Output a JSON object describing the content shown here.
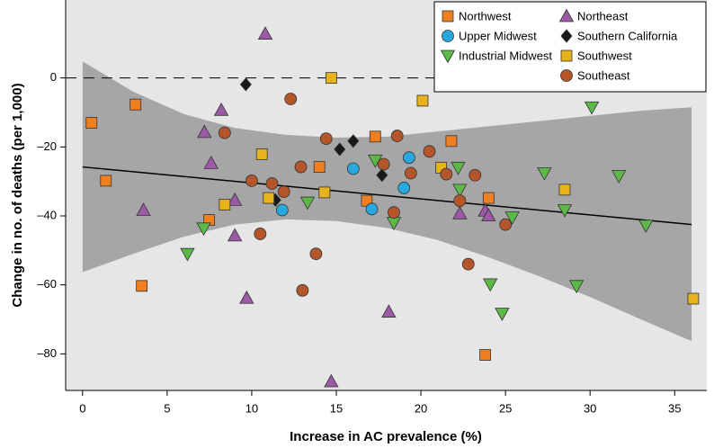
{
  "chart_data": {
    "type": "scatter",
    "x_label": "Increase in AC prevalence (%)",
    "y_label": "Change in no. of deaths (per 1,000)",
    "xlim": [
      -1,
      36.9
    ],
    "ylim": [
      -90.6,
      22.6
    ],
    "xticks": [
      0,
      5,
      10,
      15,
      20,
      25,
      30,
      35
    ],
    "yticks": [
      0,
      {
        "value": -20,
        "label": "–20"
      },
      {
        "value": -40,
        "label": "–40"
      },
      {
        "value": -60,
        "label": "–60"
      },
      {
        "value": -80,
        "label": "–80"
      }
    ],
    "reference_line": 0,
    "trend": {
      "x": [
        0,
        36
      ],
      "y": [
        -25.8,
        -42.5
      ],
      "color": "#000000"
    },
    "band": {
      "color": "#a6a6a6",
      "x": [
        0,
        3,
        6,
        9,
        12,
        15,
        18,
        21,
        24,
        27,
        30,
        33,
        36
      ],
      "upper": [
        4.8,
        -4,
        -10.5,
        -14.5,
        -16.5,
        -17.3,
        -17,
        -15.5,
        -14,
        -12.5,
        -11,
        -9.5,
        -8.5
      ],
      "lower": [
        -56.3,
        -51,
        -46,
        -42.5,
        -41,
        -41.5,
        -43.5,
        -47,
        -52,
        -57.5,
        -63.5,
        -70,
        -76.3
      ]
    },
    "legend_columns": 2,
    "series": [
      {
        "name": "Northwest",
        "color": "#f07f22",
        "marker": "square",
        "x": [
          0.53,
          1.38,
          3.13,
          3.5,
          7.48,
          14.0,
          17.3,
          16.8,
          21.8,
          24.0,
          23.8
        ],
        "values": [
          -13.0,
          -29.8,
          -7.7,
          -60.3,
          -41.2,
          -25.8,
          -17.0,
          -35.6,
          -18.3,
          -34.8,
          -80.3
        ]
      },
      {
        "name": "Upper Midwest",
        "color": "#29a8e0",
        "marker": "circle",
        "x": [
          11.8,
          16.0,
          17.1,
          19.0,
          19.3
        ],
        "values": [
          -38.3,
          -26.3,
          -38.0,
          -31.9,
          -23.1
        ]
      },
      {
        "name": "Industrial Midwest",
        "color": "#5cb947",
        "marker": "triangle-down",
        "x": [
          6.2,
          7.16,
          13.3,
          17.3,
          18.4,
          22.2,
          22.3,
          24.1,
          24.8,
          25.4,
          27.3,
          28.5,
          29.2,
          30.1,
          31.7,
          33.3
        ],
        "values": [
          -51.0,
          -43.6,
          -36.1,
          -23.9,
          -42.0,
          -26.0,
          -32.4,
          -59.8,
          -68.3,
          -40.4,
          -27.6,
          -38.3,
          -60.3,
          -8.5,
          -28.4,
          -42.8
        ]
      },
      {
        "name": "Northeast",
        "color": "#9b59a6",
        "marker": "triangle-up",
        "x": [
          3.6,
          7.2,
          7.6,
          8.2,
          9.0,
          9.0,
          9.7,
          10.8,
          14.7,
          18.1,
          22.3,
          23.8,
          24.0
        ],
        "values": [
          -38.3,
          -15.7,
          -24.7,
          -9.3,
          -35.4,
          -45.7,
          -63.8,
          12.8,
          -88.0,
          -67.8,
          -39.3,
          -38.5,
          -39.9
        ]
      },
      {
        "name": "Southern California",
        "color": "#1a1a1a",
        "marker": "diamond",
        "x": [
          9.65,
          11.4,
          15.2,
          16.0,
          17.7
        ],
        "values": [
          -1.9,
          -35.4,
          -20.7,
          -18.3,
          -28.2
        ]
      },
      {
        "name": "Southwest",
        "color": "#e8b21c",
        "marker": "square",
        "x": [
          14.7,
          20.1,
          10.6,
          8.4,
          11.0,
          14.3,
          21.2,
          28.5,
          36.1
        ],
        "values": [
          0,
          -6.6,
          -22.1,
          -36.7,
          -34.8,
          -33.2,
          -26.0,
          -32.4,
          -64.0
        ]
      },
      {
        "name": "Southeast",
        "color": "#b5562a",
        "marker": "circle",
        "x": [
          8.4,
          10.0,
          10.5,
          11.2,
          11.9,
          12.3,
          12.9,
          13.0,
          13.8,
          14.4,
          17.8,
          18.4,
          18.6,
          19.4,
          20.5,
          21.5,
          22.3,
          23.2,
          22.8,
          25.0
        ],
        "values": [
          -15.9,
          -29.8,
          -45.2,
          -30.6,
          -33.0,
          -6.1,
          -25.8,
          -61.6,
          -51.0,
          -17.6,
          -25.0,
          -39.0,
          -16.8,
          -27.6,
          -21.3,
          -27.9,
          -35.6,
          -28.2,
          -54.0,
          -42.5
        ]
      }
    ]
  }
}
